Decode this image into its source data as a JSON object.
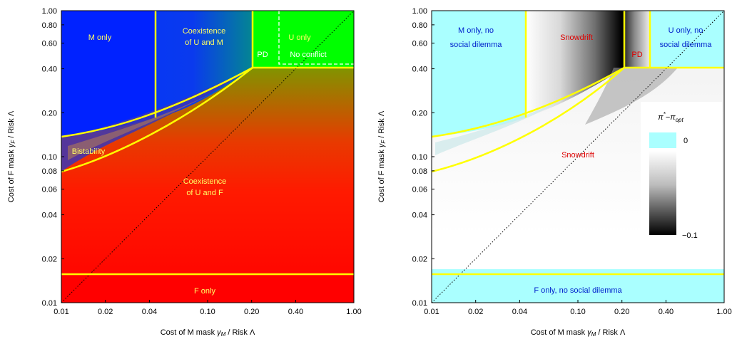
{
  "chart_data": [
    {
      "type": "heatmap",
      "title": "",
      "xlabel": "Cost of M mask γM / Risk Λ",
      "ylabel": "Cost of F mask γF / Risk Λ",
      "xscale": "log",
      "yscale": "log",
      "xlim": [
        0.01,
        1.0
      ],
      "ylim": [
        0.01,
        1.0
      ],
      "xticks": [
        "0.01",
        "0.02",
        "0.04",
        "0.10",
        "0.20",
        "0.40",
        "1.00"
      ],
      "yticks": [
        "0.01",
        "0.02",
        "0.04",
        "0.06",
        "0.08",
        "0.10",
        "0.20",
        "0.40",
        "0.60",
        "0.80",
        "1.00"
      ],
      "colors": {
        "m_only": "#0022ff",
        "u_only": "#00ff00",
        "f_only": "#ff0000",
        "boundary": "#ffff00"
      },
      "regions": [
        "M only",
        "Coexistence",
        "of U and M",
        "U only",
        "PD",
        "No conflict",
        "Bistability",
        "Coexistence",
        "of U and F",
        "F only"
      ]
    },
    {
      "type": "heatmap",
      "title": "",
      "xlabel": "Cost of M mask γM / Risk Λ",
      "ylabel": "Cost of F mask γF / Risk Λ",
      "xscale": "log",
      "yscale": "log",
      "xlim": [
        0.01,
        1.0
      ],
      "ylim": [
        0.01,
        1.0
      ],
      "xticks": [
        "0.01",
        "0.02",
        "0.04",
        "0.10",
        "0.20",
        "0.40",
        "1.00"
      ],
      "yticks": [
        "0.01",
        "0.02",
        "0.04",
        "0.06",
        "0.08",
        "0.10",
        "0.20",
        "0.40",
        "0.60",
        "0.80",
        "1.00"
      ],
      "colors": {
        "no_dilemma": "#aaffff",
        "boundary": "#ffff00",
        "label": "#dd0000"
      },
      "regions": [
        "M only, no",
        "social dilemma",
        "Snowdrift",
        "PD",
        "U only, no",
        "social dilemma",
        "Snowdrift",
        "F only, no social dilemma"
      ],
      "legend": {
        "title": "π*−πopt",
        "ticks": [
          "0",
          "−0.1"
        ],
        "range": [
          -0.1,
          0
        ]
      }
    }
  ]
}
